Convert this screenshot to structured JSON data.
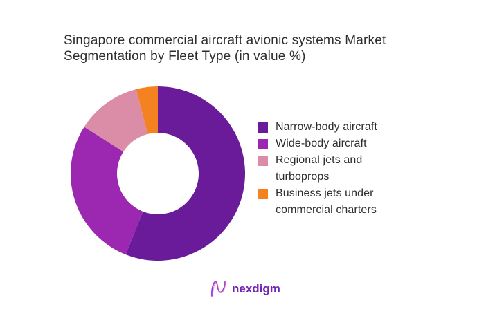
{
  "title": {
    "text": "Singapore commercial aircraft avionic systems Market\nSegmentation by Fleet Type (in value %)"
  },
  "chart_data": {
    "type": "pie",
    "subtype": "donut",
    "title": "Singapore commercial aircraft avionic systems Market Segmentation by Fleet Type (in value %)",
    "unit": "percent of value",
    "start_angle_deg": 0,
    "direction": "clockwise",
    "donut_hole_ratio": 0.47,
    "legend_position": "right",
    "categories": [
      "Narrow-body aircraft",
      "Wide-body aircraft",
      "Regional jets and turboprops",
      "Business jets under commercial charters"
    ],
    "values": [
      56,
      28,
      12,
      4
    ],
    "segments": [
      {
        "label": "Narrow-body aircraft",
        "value": 56,
        "color": "#6A1B9A"
      },
      {
        "label": "Wide-body aircraft",
        "value": 28,
        "color": "#9C27B0"
      },
      {
        "label": "Regional jets and turboprops",
        "value": 12,
        "color": "#DB8CA6"
      },
      {
        "label": "Business jets under commercial charters",
        "value": 4,
        "color": "#F58220"
      }
    ]
  },
  "colors": {
    "background": "#FFFFFF",
    "title_text": "#2D2D2D",
    "legend_text": "#2D2D2D",
    "brand_purple": "#7323B5"
  },
  "logo": {
    "brand": "nexdigm",
    "icon": "nexdigm-n-mark"
  }
}
